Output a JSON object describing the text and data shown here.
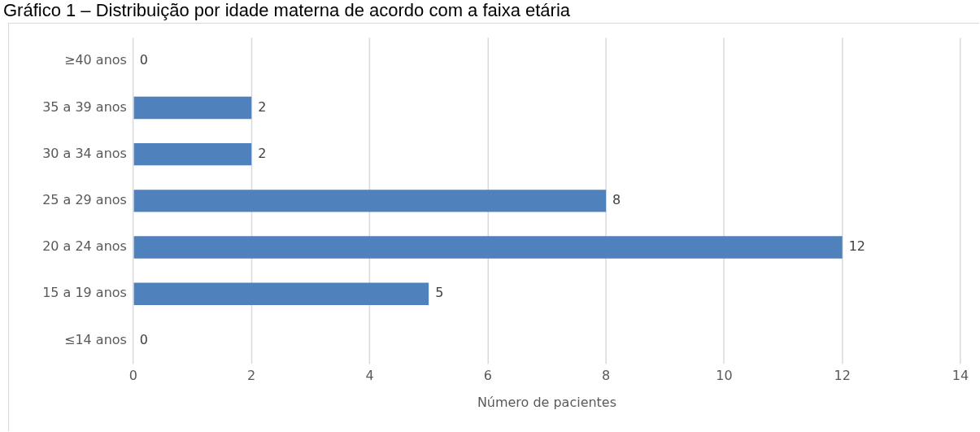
{
  "chart_data": {
    "type": "bar",
    "orientation": "horizontal",
    "title": "Gráfico 1 – Distribuição por idade materna de acordo com a faixa etária",
    "categories": [
      "≥40 anos",
      "35 a 39 anos",
      "30 a 34 anos",
      "25 a 29 anos",
      "20 a 24 anos",
      "15 a 19 anos",
      "≤14 anos"
    ],
    "values": [
      0,
      2,
      2,
      8,
      12,
      5,
      0
    ],
    "color": "#4f81bd",
    "xlabel": "Número de pacientes",
    "xlim": [
      0,
      14
    ],
    "xticks": [
      0,
      2,
      4,
      6,
      8,
      10,
      12,
      14
    ],
    "grid": "x",
    "legend": false,
    "data_labels": true
  }
}
